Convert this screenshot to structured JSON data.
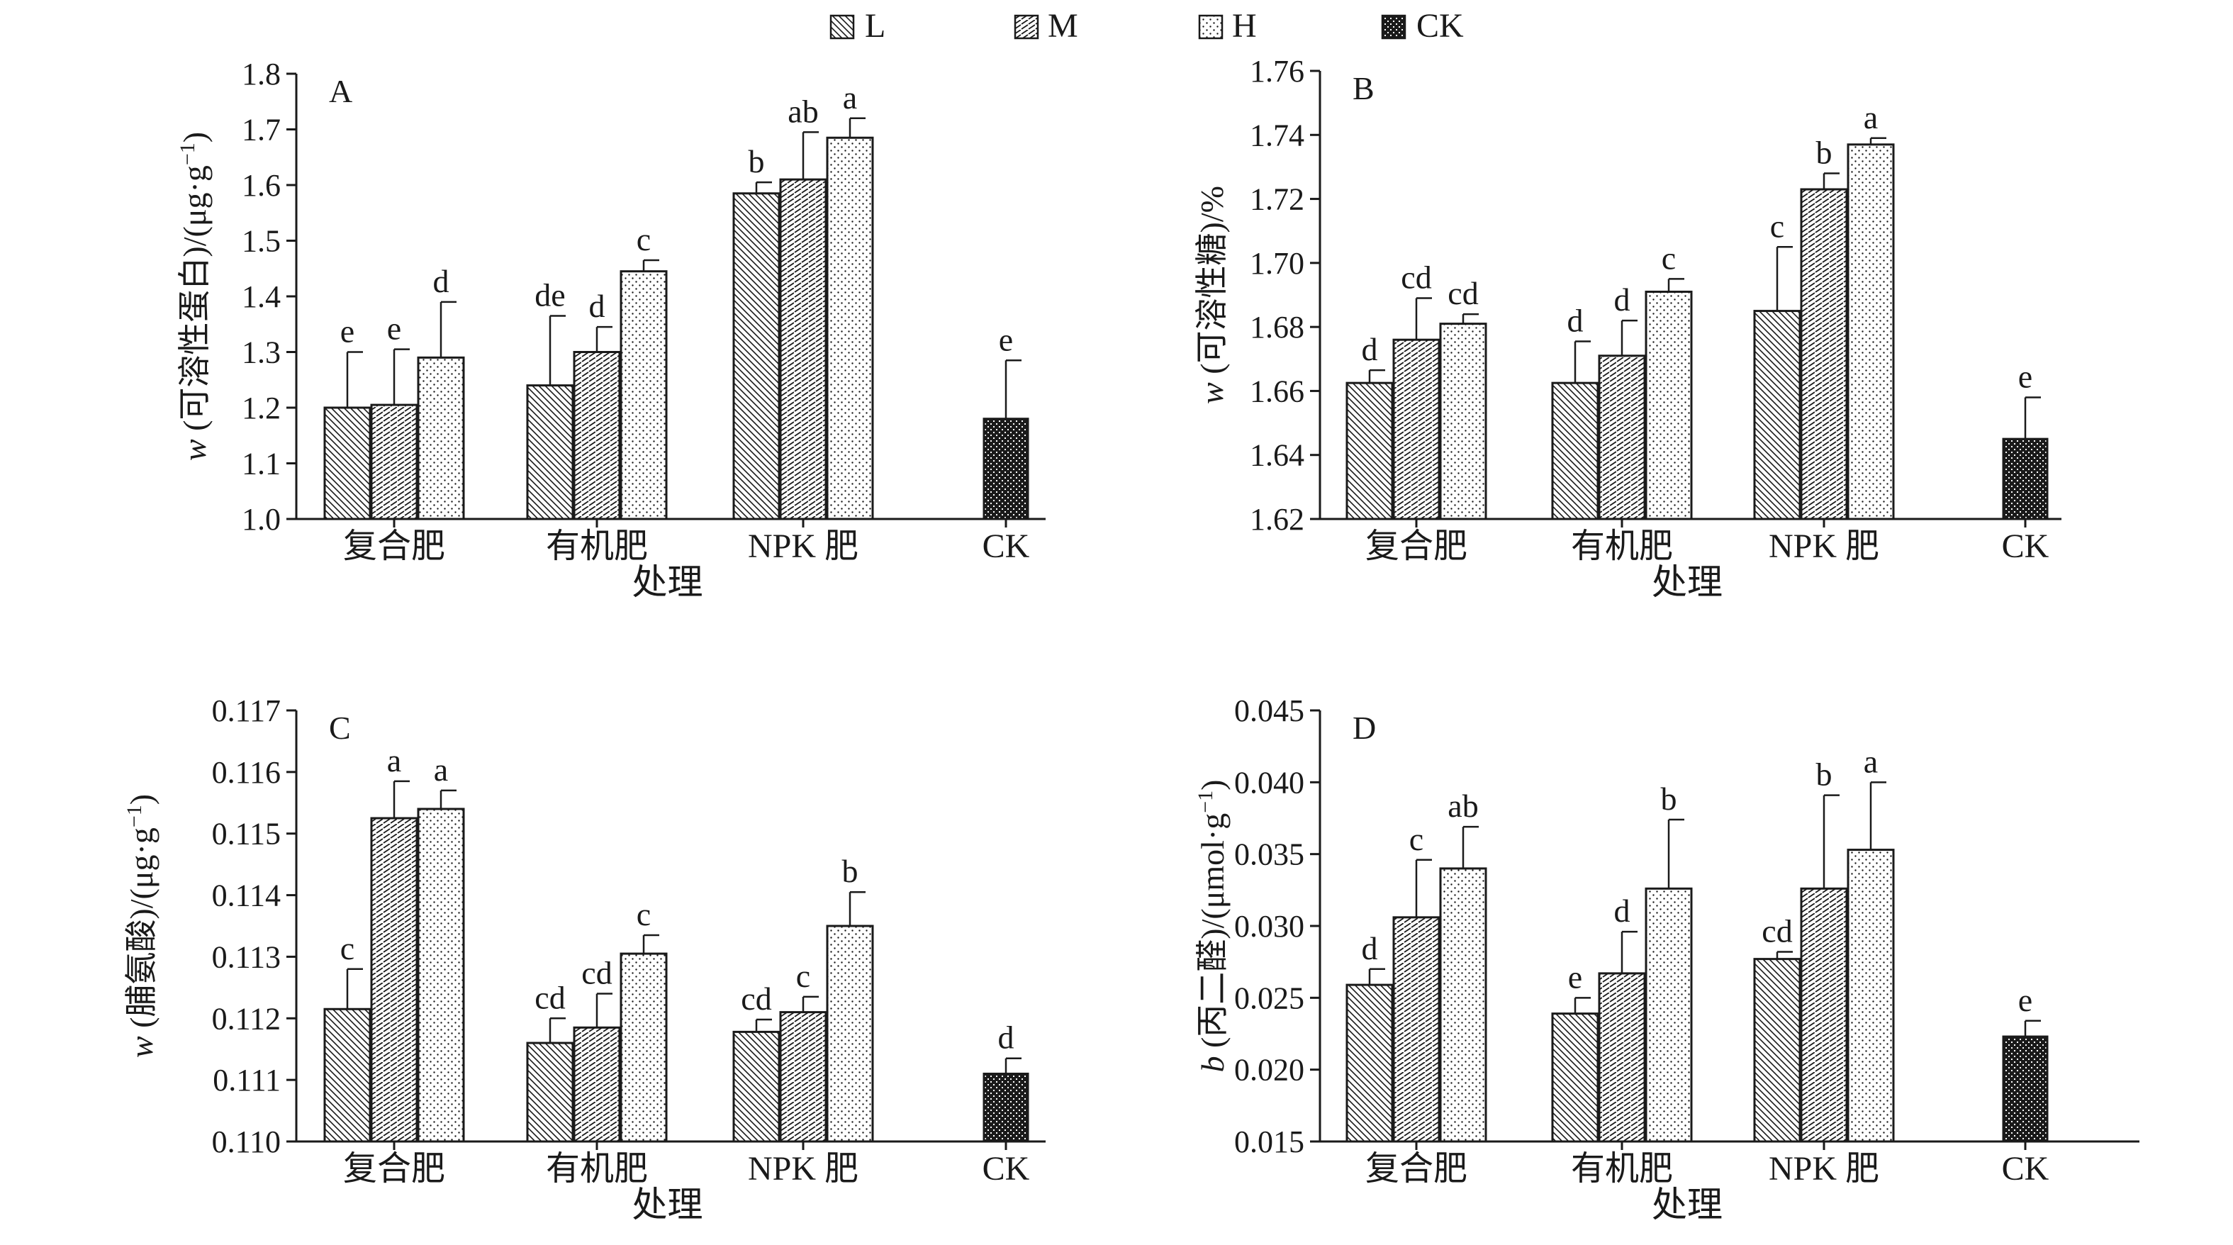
{
  "legend": [
    {
      "key": "L",
      "label": "L",
      "pattern": "pat-L"
    },
    {
      "key": "M",
      "label": "M",
      "pattern": "pat-M"
    },
    {
      "key": "H",
      "label": "H",
      "pattern": "pat-H"
    },
    {
      "key": "CK",
      "label": "CK",
      "pattern": "pat-CK"
    }
  ],
  "chart_data": [
    {
      "type": "bar",
      "panel": "A",
      "xlabel": "处理",
      "ylabel_var": "w",
      "ylabel": "(可溶性蛋白)/(μg·g",
      "ylabel_sup": "−1",
      "ylabel_end": ")",
      "ylim": [
        1.0,
        1.8
      ],
      "yticks": [
        1.0,
        1.1,
        1.2,
        1.3,
        1.4,
        1.5,
        1.6,
        1.7,
        1.8
      ],
      "ytick_labels": [
        "1.0",
        "1.1",
        "1.2",
        "1.3",
        "1.4",
        "1.5",
        "1.6",
        "1.7",
        "1.8"
      ],
      "categories": [
        "复合肥",
        "有机肥",
        "NPK 肥",
        "CK"
      ],
      "series": [
        {
          "name": "L",
          "values": [
            1.2,
            1.24,
            1.585,
            null
          ],
          "errors": [
            0.1,
            0.125,
            0.02,
            null
          ],
          "labels": [
            "e",
            "de",
            "b",
            null
          ]
        },
        {
          "name": "M",
          "values": [
            1.205,
            1.3,
            1.61,
            null
          ],
          "errors": [
            0.1,
            0.045,
            0.085,
            null
          ],
          "labels": [
            "e",
            "d",
            "ab",
            null
          ]
        },
        {
          "name": "H",
          "values": [
            1.29,
            1.445,
            1.685,
            null
          ],
          "errors": [
            0.1,
            0.02,
            0.035,
            null
          ],
          "labels": [
            "d",
            "c",
            "a",
            null
          ]
        },
        {
          "name": "CK",
          "values": [
            null,
            null,
            null,
            1.18
          ],
          "errors": [
            null,
            null,
            null,
            0.105
          ],
          "labels": [
            null,
            null,
            null,
            "e"
          ]
        }
      ]
    },
    {
      "type": "bar",
      "panel": "B",
      "xlabel": "处理",
      "ylabel_var": "w",
      "ylabel": "(可溶性糖)/%",
      "ylabel_sup": "",
      "ylabel_end": "",
      "ylim": [
        1.62,
        1.76
      ],
      "yticks": [
        1.62,
        1.64,
        1.66,
        1.68,
        1.7,
        1.72,
        1.74,
        1.76
      ],
      "ytick_labels": [
        "1.62",
        "1.64",
        "1.66",
        "1.68",
        "1.70",
        "1.72",
        "1.74",
        "1.76"
      ],
      "categories": [
        "复合肥",
        "有机肥",
        "NPK 肥",
        "CK"
      ],
      "series": [
        {
          "name": "L",
          "values": [
            1.6625,
            1.6625,
            1.685,
            null
          ],
          "errors": [
            0.004,
            0.013,
            0.02,
            null
          ],
          "labels": [
            "d",
            "d",
            "c",
            null
          ]
        },
        {
          "name": "M",
          "values": [
            1.676,
            1.671,
            1.723,
            null
          ],
          "errors": [
            0.013,
            0.011,
            0.005,
            null
          ],
          "labels": [
            "cd",
            "d",
            "b",
            null
          ]
        },
        {
          "name": "H",
          "values": [
            1.681,
            1.691,
            1.737,
            null
          ],
          "errors": [
            0.003,
            0.004,
            0.002,
            null
          ],
          "labels": [
            "cd",
            "c",
            "a",
            null
          ]
        },
        {
          "name": "CK",
          "values": [
            null,
            null,
            null,
            1.645
          ],
          "errors": [
            null,
            null,
            null,
            0.013
          ],
          "labels": [
            null,
            null,
            null,
            "e"
          ]
        }
      ]
    },
    {
      "type": "bar",
      "panel": "C",
      "xlabel": "处理",
      "ylabel_var": "w",
      "ylabel": "(脯氨酸)/(μg·g",
      "ylabel_sup": "−1",
      "ylabel_end": ")",
      "ylim": [
        0.11,
        0.117
      ],
      "yticks": [
        0.11,
        0.111,
        0.112,
        0.113,
        0.114,
        0.115,
        0.116,
        0.117
      ],
      "ytick_labels": [
        "0.110",
        "0.111",
        "0.112",
        "0.113",
        "0.114",
        "0.115",
        "0.116",
        "0.117"
      ],
      "categories": [
        "复合肥",
        "有机肥",
        "NPK 肥",
        "CK"
      ],
      "series": [
        {
          "name": "L",
          "values": [
            0.11215,
            0.1116,
            0.11178,
            null
          ],
          "errors": [
            0.00065,
            0.0004,
            0.0002,
            null
          ],
          "labels": [
            "c",
            "cd",
            "cd",
            null
          ]
        },
        {
          "name": "M",
          "values": [
            0.11525,
            0.11185,
            0.1121,
            null
          ],
          "errors": [
            0.0006,
            0.00055,
            0.00025,
            null
          ],
          "labels": [
            "a",
            "cd",
            "c",
            null
          ]
        },
        {
          "name": "H",
          "values": [
            0.1154,
            0.11305,
            0.1135,
            null
          ],
          "errors": [
            0.0003,
            0.0003,
            0.00055,
            null
          ],
          "labels": [
            "a",
            "c",
            "b",
            null
          ]
        },
        {
          "name": "CK",
          "values": [
            null,
            null,
            null,
            0.1111
          ],
          "errors": [
            null,
            null,
            null,
            0.00025
          ],
          "labels": [
            null,
            null,
            null,
            "d"
          ]
        }
      ]
    },
    {
      "type": "bar",
      "panel": "D",
      "xlabel": "处理",
      "ylabel_var": "b",
      "ylabel": "(丙二醛)/(μmol·g",
      "ylabel_sup": "−1",
      "ylabel_end": ")",
      "ylim": [
        0.015,
        0.045
      ],
      "yticks": [
        0.015,
        0.02,
        0.025,
        0.03,
        0.035,
        0.04,
        0.045
      ],
      "ytick_labels": [
        "0.015",
        "0.020",
        "0.025",
        "0.030",
        "0.035",
        "0.040",
        "0.045"
      ],
      "categories": [
        "复合肥",
        "有机肥",
        "NPK 肥",
        "CK"
      ],
      "series": [
        {
          "name": "L",
          "values": [
            0.0259,
            0.0239,
            0.0277,
            null
          ],
          "errors": [
            0.0011,
            0.0011,
            0.0005,
            null
          ],
          "labels": [
            "d",
            "e",
            "cd",
            null
          ]
        },
        {
          "name": "M",
          "values": [
            0.0306,
            0.0267,
            0.0326,
            null
          ],
          "errors": [
            0.004,
            0.0029,
            0.0065,
            null
          ],
          "labels": [
            "c",
            "d",
            "b",
            null
          ]
        },
        {
          "name": "H",
          "values": [
            0.034,
            0.0326,
            0.0353,
            null
          ],
          "errors": [
            0.0029,
            0.0048,
            0.0047,
            null
          ],
          "labels": [
            "ab",
            "b",
            "a",
            null
          ]
        },
        {
          "name": "CK",
          "values": [
            null,
            null,
            null,
            0.0223
          ],
          "errors": [
            null,
            null,
            null,
            0.0011
          ],
          "labels": [
            null,
            null,
            null,
            "e"
          ]
        }
      ]
    }
  ]
}
